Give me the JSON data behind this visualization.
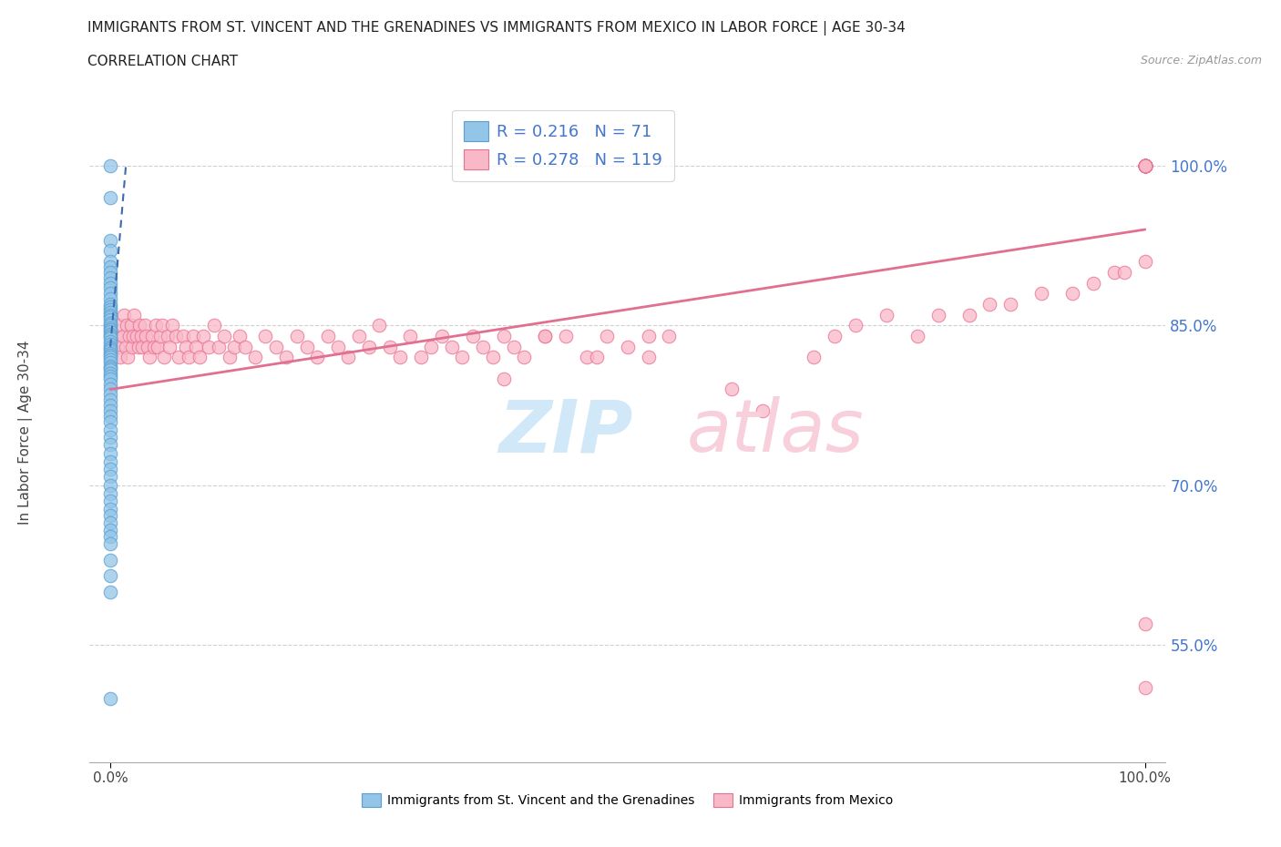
{
  "title": "IMMIGRANTS FROM ST. VINCENT AND THE GRENADINES VS IMMIGRANTS FROM MEXICO IN LABOR FORCE | AGE 30-34",
  "subtitle": "CORRELATION CHART",
  "source": "Source: ZipAtlas.com",
  "ylabel": "In Labor Force | Age 30-34",
  "ytick_labels": [
    "55.0%",
    "70.0%",
    "85.0%",
    "100.0%"
  ],
  "ytick_values": [
    0.55,
    0.7,
    0.85,
    1.0
  ],
  "xlim": [
    -0.02,
    1.02
  ],
  "ylim": [
    0.44,
    1.06
  ],
  "legend_blue_R": "0.216",
  "legend_blue_N": "71",
  "legend_pink_R": "0.278",
  "legend_pink_N": "119",
  "legend_label_blue": "Immigrants from St. Vincent and the Grenadines",
  "legend_label_pink": "Immigrants from Mexico",
  "blue_color": "#92C5E8",
  "blue_edge": "#5B9ECF",
  "pink_color": "#F9B8C8",
  "pink_edge": "#E87090",
  "trend_blue_color": "#3A6AAF",
  "trend_pink_color": "#E07090",
  "grid_color": "#cccccc",
  "title_color": "#222222",
  "tick_color": "#4477cc",
  "source_color": "#999999",
  "background": "#ffffff",
  "watermark_zip_color": "#d0e8f8",
  "watermark_atlas_color": "#f8d0dc",
  "blue_x": [
    0.0,
    0.0,
    0.0,
    0.0,
    0.0,
    0.0,
    0.0,
    0.0,
    0.0,
    0.0,
    0.0,
    0.0,
    0.0,
    0.0,
    0.0,
    0.0,
    0.0,
    0.0,
    0.0,
    0.0,
    0.0,
    0.0,
    0.0,
    0.0,
    0.0,
    0.0,
    0.0,
    0.0,
    0.0,
    0.0,
    0.0,
    0.0,
    0.0,
    0.0,
    0.0,
    0.0,
    0.0,
    0.0,
    0.0,
    0.0,
    0.0,
    0.0,
    0.0,
    0.0,
    0.0,
    0.0,
    0.0,
    0.0,
    0.0,
    0.0,
    0.0,
    0.0,
    0.0,
    0.0,
    0.0,
    0.0,
    0.0,
    0.0,
    0.0,
    0.0,
    0.0,
    0.0,
    0.0,
    0.0,
    0.0,
    0.0,
    0.0,
    0.0,
    0.0,
    0.0,
    0.0
  ],
  "blue_y": [
    1.0,
    0.97,
    0.93,
    0.92,
    0.91,
    0.905,
    0.9,
    0.895,
    0.89,
    0.885,
    0.88,
    0.875,
    0.87,
    0.867,
    0.865,
    0.862,
    0.86,
    0.858,
    0.855,
    0.852,
    0.85,
    0.848,
    0.846,
    0.844,
    0.842,
    0.84,
    0.838,
    0.835,
    0.832,
    0.83,
    0.828,
    0.826,
    0.824,
    0.822,
    0.82,
    0.818,
    0.815,
    0.812,
    0.81,
    0.808,
    0.805,
    0.802,
    0.8,
    0.795,
    0.79,
    0.785,
    0.78,
    0.775,
    0.77,
    0.765,
    0.76,
    0.752,
    0.745,
    0.738,
    0.73,
    0.722,
    0.715,
    0.708,
    0.7,
    0.692,
    0.685,
    0.678,
    0.672,
    0.665,
    0.658,
    0.652,
    0.645,
    0.63,
    0.615,
    0.6,
    0.5
  ],
  "pink_x": [
    0.005,
    0.007,
    0.009,
    0.01,
    0.012,
    0.013,
    0.015,
    0.016,
    0.017,
    0.018,
    0.02,
    0.021,
    0.022,
    0.023,
    0.025,
    0.027,
    0.028,
    0.03,
    0.031,
    0.033,
    0.034,
    0.036,
    0.038,
    0.04,
    0.042,
    0.044,
    0.046,
    0.048,
    0.05,
    0.052,
    0.055,
    0.057,
    0.06,
    0.063,
    0.066,
    0.07,
    0.073,
    0.076,
    0.08,
    0.083,
    0.086,
    0.09,
    0.095,
    0.1,
    0.105,
    0.11,
    0.115,
    0.12,
    0.125,
    0.13,
    0.14,
    0.15,
    0.16,
    0.17,
    0.18,
    0.19,
    0.2,
    0.21,
    0.22,
    0.23,
    0.24,
    0.25,
    0.26,
    0.27,
    0.28,
    0.29,
    0.3,
    0.31,
    0.32,
    0.33,
    0.34,
    0.35,
    0.36,
    0.37,
    0.38,
    0.39,
    0.4,
    0.42,
    0.44,
    0.46,
    0.48,
    0.5,
    0.52,
    0.54,
    0.38,
    0.42,
    0.47,
    0.52,
    0.6,
    0.63,
    0.68,
    0.7,
    0.72,
    0.75,
    0.78,
    0.8,
    0.83,
    0.85,
    0.87,
    0.9,
    0.93,
    0.95,
    0.97,
    0.98,
    1.0,
    1.0,
    1.0,
    1.0,
    1.0,
    1.0,
    1.0,
    1.0,
    1.0,
    1.0,
    1.0,
    1.0,
    1.0,
    1.0,
    1.0,
    1.0,
    1.0
  ],
  "pink_y": [
    0.84,
    0.83,
    0.85,
    0.82,
    0.84,
    0.86,
    0.83,
    0.85,
    0.82,
    0.84,
    0.85,
    0.83,
    0.84,
    0.86,
    0.84,
    0.83,
    0.85,
    0.84,
    0.83,
    0.85,
    0.84,
    0.83,
    0.82,
    0.84,
    0.83,
    0.85,
    0.83,
    0.84,
    0.85,
    0.82,
    0.84,
    0.83,
    0.85,
    0.84,
    0.82,
    0.84,
    0.83,
    0.82,
    0.84,
    0.83,
    0.82,
    0.84,
    0.83,
    0.85,
    0.83,
    0.84,
    0.82,
    0.83,
    0.84,
    0.83,
    0.82,
    0.84,
    0.83,
    0.82,
    0.84,
    0.83,
    0.82,
    0.84,
    0.83,
    0.82,
    0.84,
    0.83,
    0.85,
    0.83,
    0.82,
    0.84,
    0.82,
    0.83,
    0.84,
    0.83,
    0.82,
    0.84,
    0.83,
    0.82,
    0.84,
    0.83,
    0.82,
    0.84,
    0.84,
    0.82,
    0.84,
    0.83,
    0.82,
    0.84,
    0.8,
    0.84,
    0.82,
    0.84,
    0.79,
    0.77,
    0.82,
    0.84,
    0.85,
    0.86,
    0.84,
    0.86,
    0.86,
    0.87,
    0.87,
    0.88,
    0.88,
    0.89,
    0.9,
    0.9,
    0.91,
    1.0,
    1.0,
    1.0,
    1.0,
    1.0,
    1.0,
    1.0,
    1.0,
    1.0,
    1.0,
    0.51,
    0.57,
    1.0,
    1.0,
    1.0,
    1.0
  ],
  "pink_trend_x": [
    0.0,
    1.0
  ],
  "pink_trend_y": [
    0.79,
    0.94
  ],
  "blue_trend_x": [
    0.0,
    0.015
  ],
  "blue_trend_y": [
    0.83,
    1.0
  ]
}
